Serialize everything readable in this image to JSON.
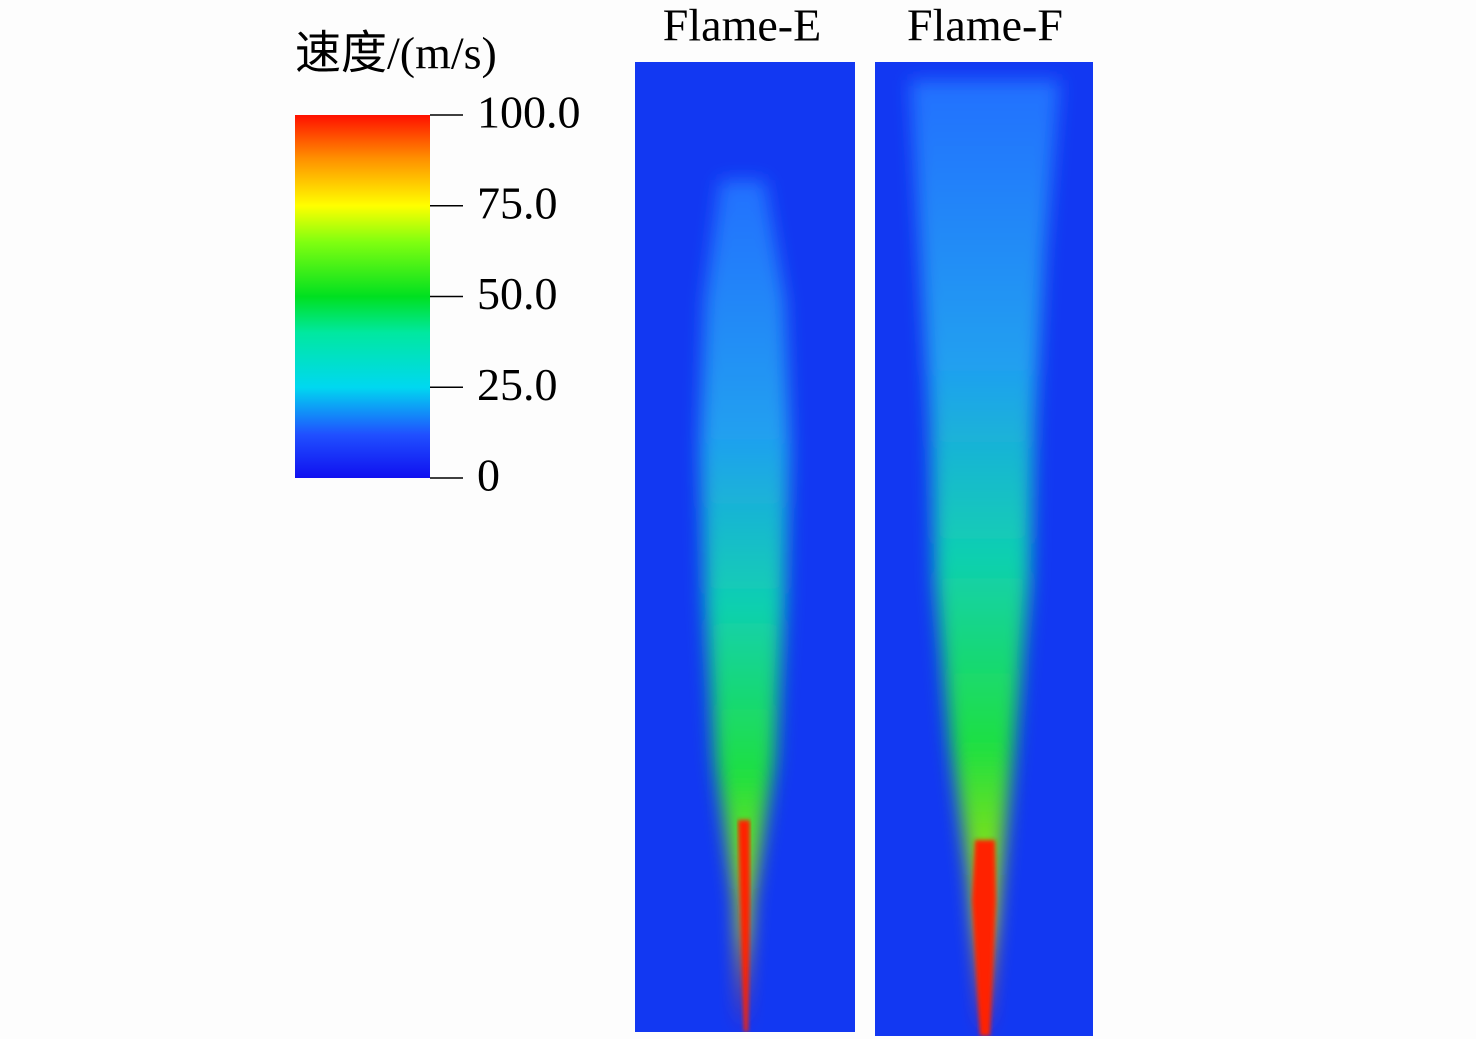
{
  "colorbar": {
    "title": "速度/(m/s)",
    "lim": [
      0,
      100
    ],
    "ticks": [
      {
        "value": 100,
        "label": "100.0"
      },
      {
        "value": 75,
        "label": "75.0"
      },
      {
        "value": 50,
        "label": "50.0"
      },
      {
        "value": 25,
        "label": "25.0"
      },
      0
    ]
  },
  "panels": [
    {
      "title": "Flame-E"
    },
    {
      "title": "Flame-F"
    }
  ]
}
